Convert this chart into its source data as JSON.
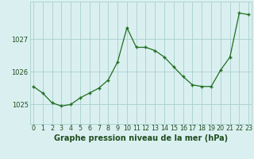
{
  "x": [
    0,
    1,
    2,
    3,
    4,
    5,
    6,
    7,
    8,
    9,
    10,
    11,
    12,
    13,
    14,
    15,
    16,
    17,
    18,
    19,
    20,
    21,
    22,
    23
  ],
  "y": [
    1025.55,
    1025.35,
    1025.05,
    1024.95,
    1025.0,
    1025.2,
    1025.35,
    1025.5,
    1025.75,
    1026.3,
    1027.35,
    1026.75,
    1026.75,
    1026.65,
    1026.45,
    1026.15,
    1025.85,
    1025.6,
    1025.55,
    1025.55,
    1026.05,
    1026.45,
    1027.8,
    1027.75
  ],
  "line_color": "#1f6e1f",
  "marker_color": "#1f6e1f",
  "bg_color": "#daf0f0",
  "grid_color": "#aacece",
  "ylabel_ticks": [
    1025,
    1026,
    1027
  ],
  "xtick_labels": [
    "0",
    "1",
    "2",
    "3",
    "4",
    "5",
    "6",
    "7",
    "8",
    "9",
    "10",
    "11",
    "12",
    "13",
    "14",
    "15",
    "16",
    "17",
    "18",
    "19",
    "20",
    "21",
    "22",
    "23"
  ],
  "xlabel": "Graphe pression niveau de la mer (hPa)",
  "ylim": [
    1024.4,
    1028.15
  ],
  "xlim": [
    -0.3,
    23.3
  ],
  "label_color": "#1f4d1f",
  "xlabel_fontsize": 7.0,
  "tick_fontsize": 5.8,
  "ylabel_fontsize": 6.0
}
